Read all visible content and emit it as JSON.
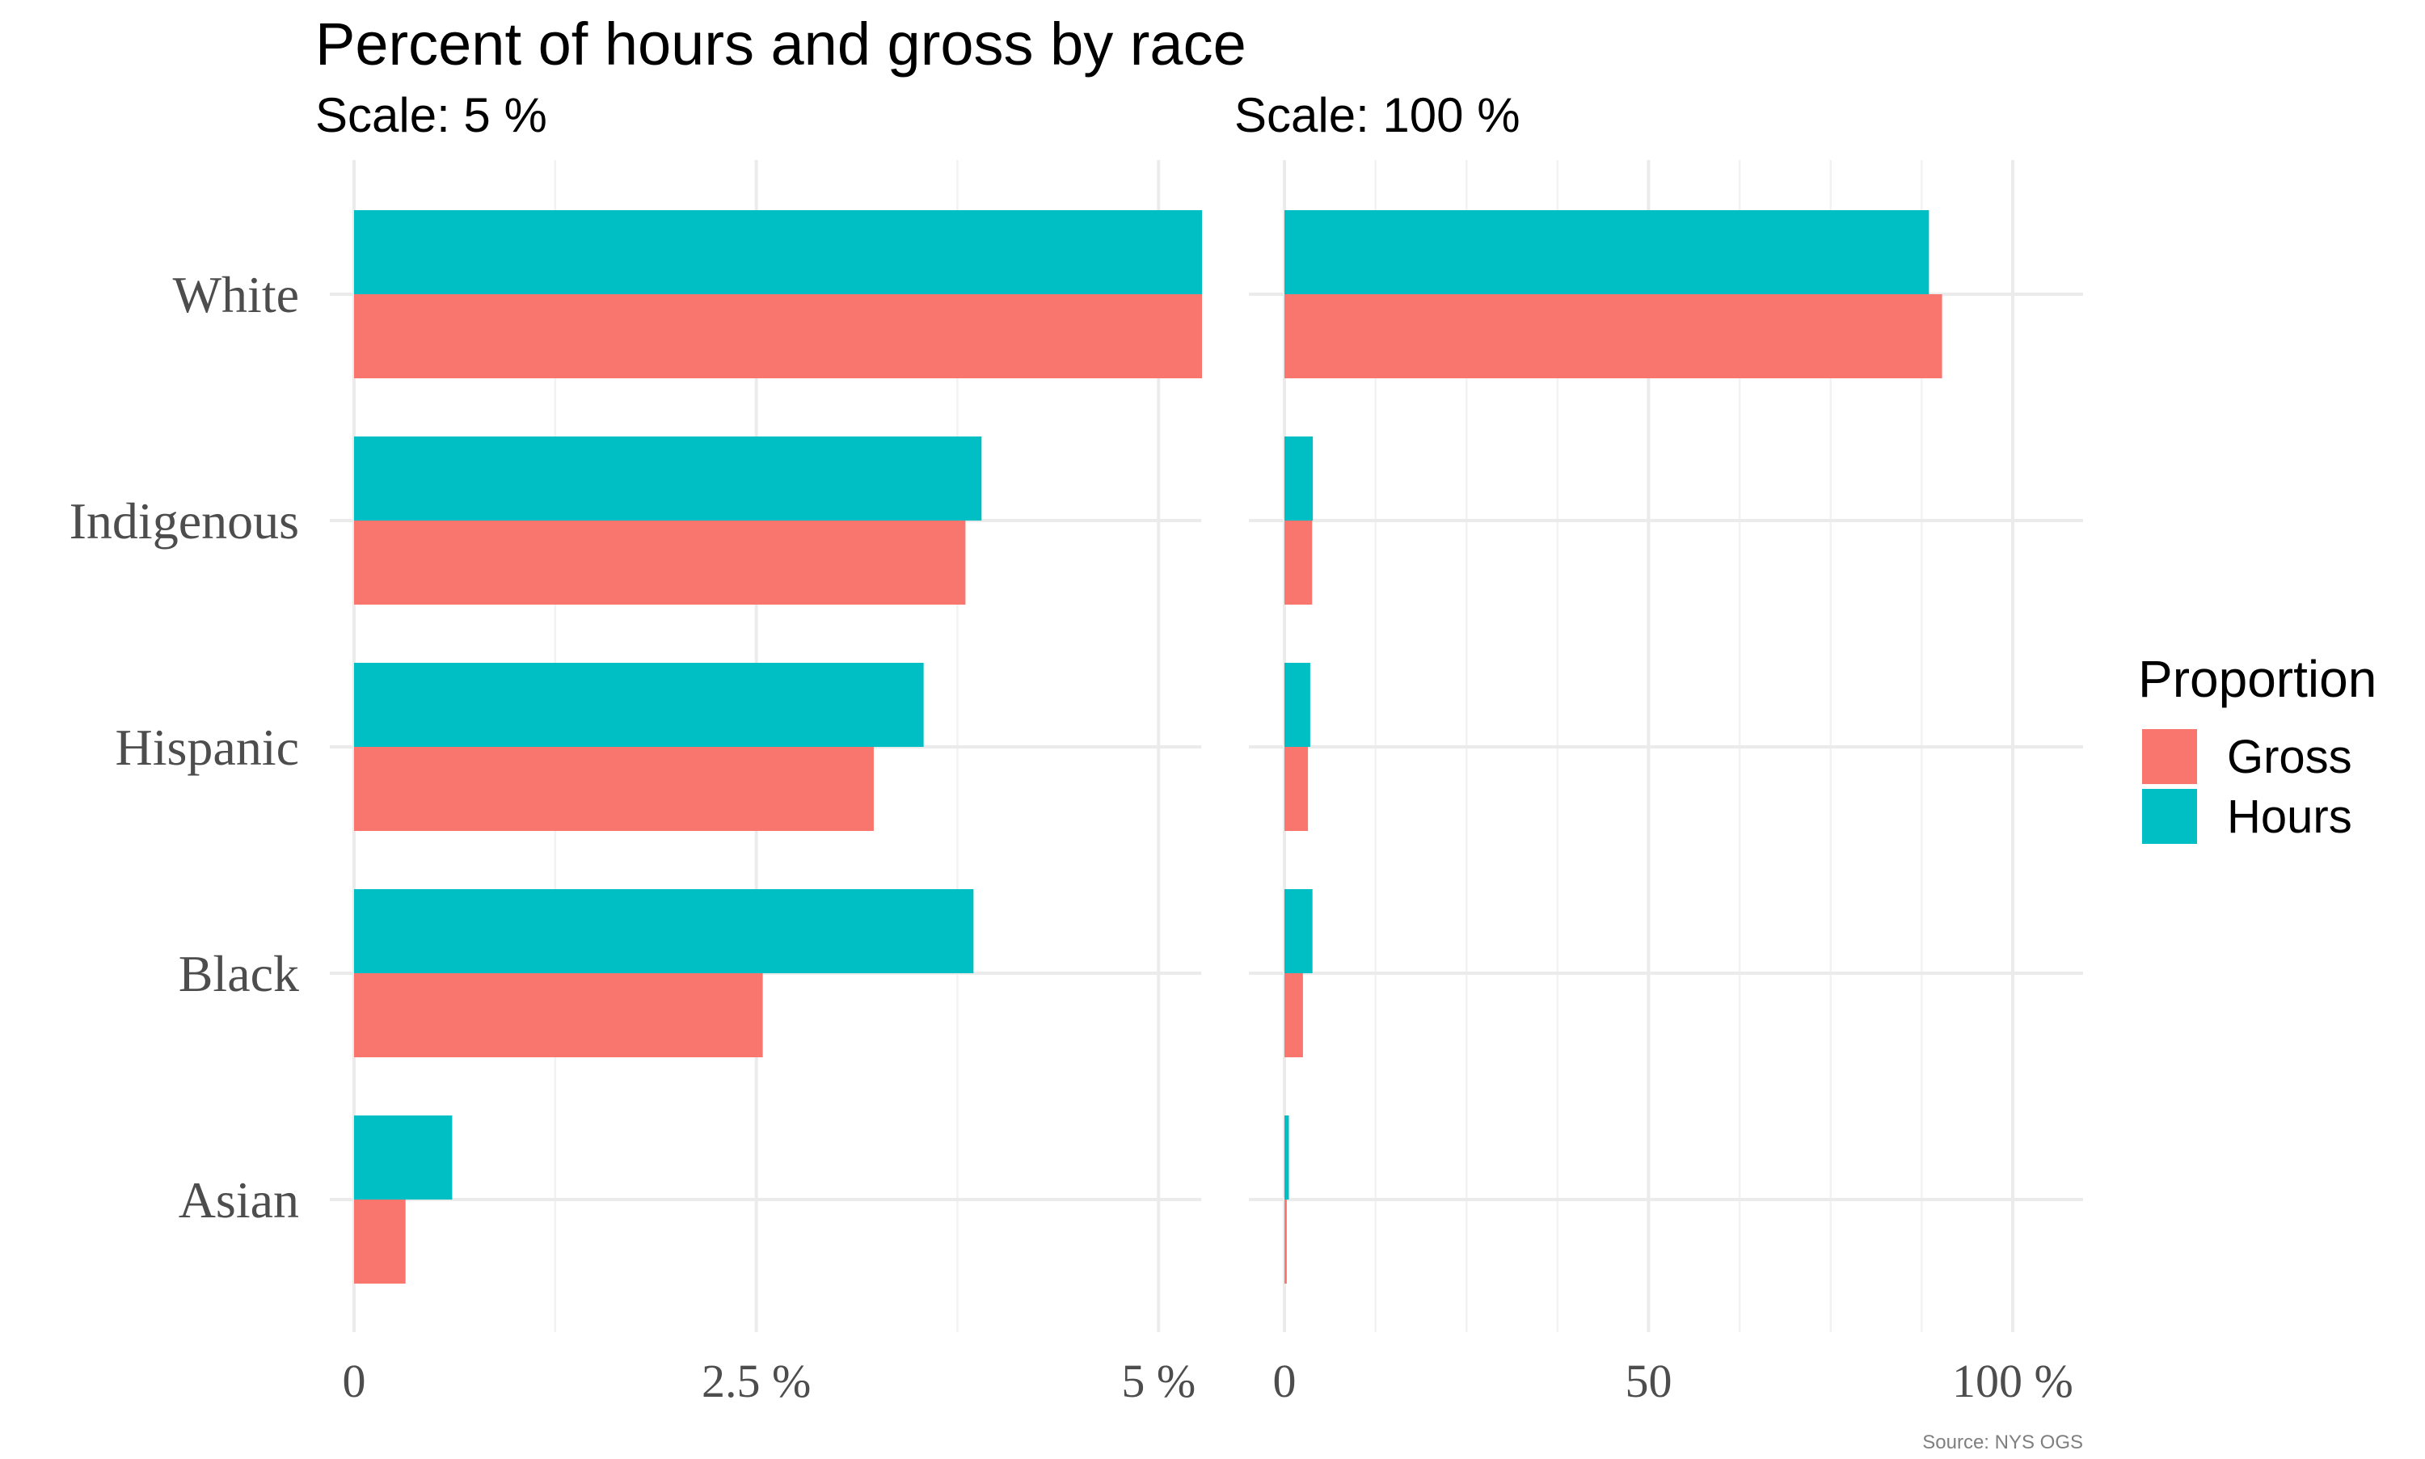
{
  "chart_data": {
    "type": "bar",
    "title": "Percent of hours and gross by race",
    "caption": "Source: NYS OGS",
    "categories": [
      "White",
      "Indigenous",
      "Hispanic",
      "Black",
      "Asian"
    ],
    "series": [
      {
        "name": "Gross",
        "color": "#F8766D",
        "values": [
          90.3,
          3.8,
          3.23,
          2.54,
          0.32
        ]
      },
      {
        "name": "Hours",
        "color": "#00BFC4",
        "values": [
          88.5,
          3.9,
          3.54,
          3.85,
          0.61
        ]
      }
    ],
    "legend": {
      "title": "Proportion",
      "position": "right"
    },
    "panels": [
      {
        "subtitle": "Scale: 5 %",
        "xlim": [
          0,
          5.27
        ],
        "truncated": true,
        "ticks": [
          {
            "value": 0,
            "label": "0"
          },
          {
            "value": 2.5,
            "label": "2.5 %"
          },
          {
            "value": 5,
            "label": "5 %"
          }
        ],
        "minor_ticks": [
          1.25,
          3.75
        ]
      },
      {
        "subtitle": "Scale: 100 %",
        "xlim": [
          0,
          105
        ],
        "truncated": false,
        "ticks": [
          {
            "value": 0,
            "label": "0"
          },
          {
            "value": 50,
            "label": "50"
          },
          {
            "value": 100,
            "label": "100 %"
          }
        ],
        "minor_ticks": [
          12.5,
          25,
          37.5,
          62.5,
          75,
          87.5
        ]
      }
    ],
    "grid": true
  }
}
